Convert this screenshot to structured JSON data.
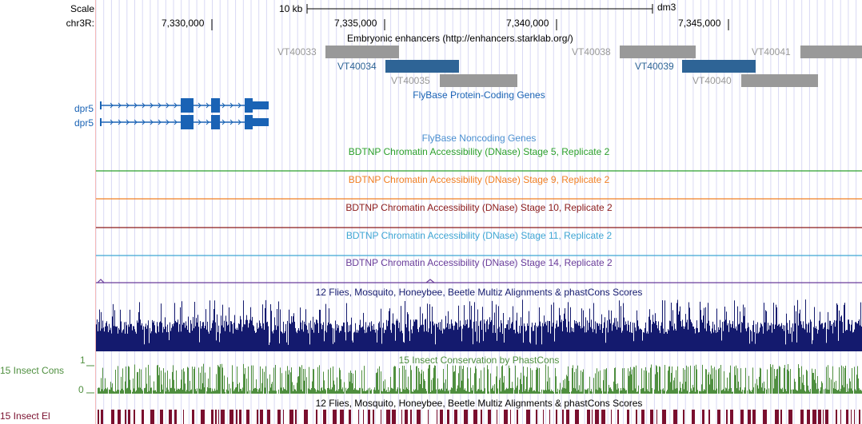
{
  "header": {
    "scale_label": "Scale",
    "scale_text": "10 kb",
    "assembly": "dm3",
    "chrom_label": "chr3R:",
    "ticks": [
      "7,330,000",
      "7,335,000",
      "7,340,000",
      "7,345,000"
    ]
  },
  "enhancers": {
    "title": "Embryonic enhancers (http://enhancers.starklab.org/)",
    "items": [
      {
        "name": "VT40033",
        "color": "#999999"
      },
      {
        "name": "VT40034",
        "color": "#2e6496"
      },
      {
        "name": "VT40035",
        "color": "#999999"
      },
      {
        "name": "VT40038",
        "color": "#999999"
      },
      {
        "name": "VT40039",
        "color": "#2e6496"
      },
      {
        "name": "VT40040",
        "color": "#999999"
      },
      {
        "name": "VT40041",
        "color": "#999999"
      }
    ]
  },
  "genes": {
    "title": "FlyBase Protein-Coding Genes",
    "color": "#1a63b5",
    "transcripts": [
      "dpr5",
      "dpr5"
    ]
  },
  "noncoding": {
    "title": "FlyBase Noncoding Genes",
    "color": "#4a8fd0"
  },
  "dnase": [
    {
      "title": "BDTNP Chromatin Accessibility (DNase) Stage 5, Replicate 2",
      "color": "#2ca02c"
    },
    {
      "title": "BDTNP Chromatin Accessibility (DNase) Stage 9, Replicate 2",
      "color": "#f07f23"
    },
    {
      "title": "BDTNP Chromatin Accessibility (DNase) Stage 10, Replicate 2",
      "color": "#8b1a1a"
    },
    {
      "title": "BDTNP Chromatin Accessibility (DNase) Stage 11, Replicate 2",
      "color": "#3fa6d4"
    },
    {
      "title": "BDTNP Chromatin Accessibility (DNase) Stage 14, Replicate 2",
      "color": "#6a3d9a"
    }
  ],
  "multiz": {
    "title": "12 Flies, Mosquito, Honeybee, Beetle Multiz Alignments & phastCons Scores",
    "color": "#141a6e"
  },
  "phastcons": {
    "title": "15 Insect Conservation by PhastCons",
    "left_label": "15 Insect Cons",
    "max_label": "1",
    "min_label": "0",
    "color": "#4f8f3f"
  },
  "multiz2": {
    "title": "12 Flies, Mosquito, Honeybee, Beetle Multiz Alignments & phastCons Scores"
  },
  "elements": {
    "left_label": "15 Insect El",
    "color": "#7a0f2e"
  }
}
